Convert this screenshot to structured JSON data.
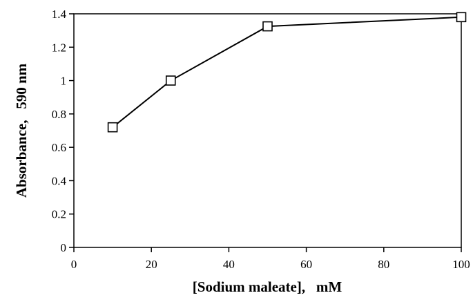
{
  "chart_data": {
    "type": "line",
    "title": "",
    "xlabel": "[Sodium maleate],   mM",
    "ylabel": "Absorbance,   590 nm",
    "xlim": [
      0,
      100
    ],
    "ylim": [
      0,
      1.4
    ],
    "xticks": [
      0,
      20,
      40,
      60,
      80,
      100
    ],
    "yticks": [
      0,
      0.2,
      0.4,
      0.6,
      0.8,
      1,
      1.2,
      1.4
    ],
    "xtick_labels": [
      "0",
      "20",
      "40",
      "60",
      "80",
      "100"
    ],
    "ytick_labels": [
      "0",
      "0.2",
      "0.4",
      "0.6",
      "0.8",
      "1",
      "1.2",
      "1.4"
    ],
    "grid": false,
    "legend": "none",
    "series": [
      {
        "marker": "open-square",
        "color": "#000000",
        "x": [
          10,
          25,
          50,
          100
        ],
        "y": [
          0.72,
          1.0,
          1.325,
          1.38
        ]
      }
    ]
  }
}
